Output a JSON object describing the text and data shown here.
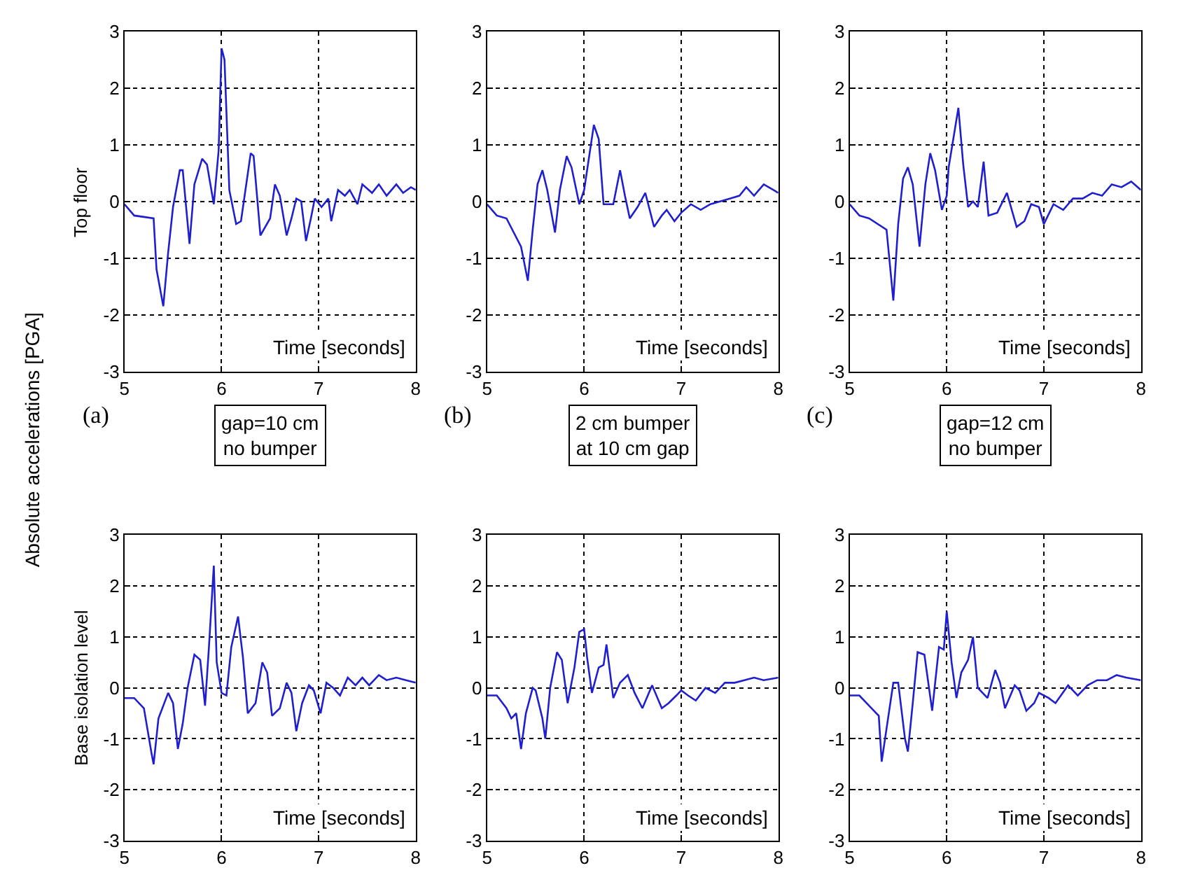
{
  "chart_data": [
    {
      "type": "line",
      "ylabel": "Top floor",
      "xlabel": "Time [seconds]",
      "annotations": [
        "(a)",
        "gap=10 cm\nno bumper",
        "Absolute accelerations [PGA]"
      ],
      "xlim": [
        5,
        8
      ],
      "ylim": [
        -3,
        3
      ],
      "xticks": [
        5,
        6,
        7,
        8
      ],
      "yticks": [
        -3,
        -2,
        -1,
        0,
        1,
        2,
        3
      ],
      "grid": true,
      "line_style": "solid",
      "series": [
        {
          "color": "#1f1fd0",
          "x": [
            5.0,
            5.1,
            5.3,
            5.33,
            5.4,
            5.45,
            5.5,
            5.57,
            5.6,
            5.67,
            5.72,
            5.8,
            5.85,
            5.92,
            5.97,
            6.0,
            6.03,
            6.08,
            6.15,
            6.2,
            6.3,
            6.33,
            6.4,
            6.5,
            6.55,
            6.6,
            6.67,
            6.72,
            6.77,
            6.82,
            6.87,
            6.92,
            6.96,
            7.03,
            7.1,
            7.13,
            7.2,
            7.27,
            7.32,
            7.4,
            7.45,
            7.55,
            7.62,
            7.7,
            7.8,
            7.87,
            7.95,
            8.0
          ],
          "values": [
            -0.05,
            -0.25,
            -0.3,
            -1.2,
            -1.85,
            -0.9,
            -0.1,
            0.55,
            0.55,
            -0.75,
            0.3,
            0.75,
            0.65,
            -0.05,
            0.9,
            2.7,
            2.5,
            0.2,
            -0.4,
            -0.35,
            0.85,
            0.8,
            -0.6,
            -0.3,
            0.3,
            0.1,
            -0.6,
            -0.3,
            0.05,
            0.0,
            -0.7,
            -0.3,
            0.05,
            -0.1,
            0.05,
            -0.35,
            0.2,
            0.1,
            0.2,
            -0.05,
            0.3,
            0.15,
            0.3,
            0.1,
            0.3,
            0.15,
            0.25,
            0.2
          ]
        }
      ]
    },
    {
      "type": "line",
      "xlabel": "Time [seconds]",
      "annotations": [
        "(b)",
        "2 cm bumper\nat 10 cm gap"
      ],
      "xlim": [
        5,
        8
      ],
      "ylim": [
        -3,
        3
      ],
      "xticks": [
        5,
        6,
        7,
        8
      ],
      "yticks": [
        -3,
        -2,
        -1,
        0,
        1,
        2,
        3
      ],
      "grid": true,
      "line_style": "solid",
      "series": [
        {
          "color": "#1f1fd0",
          "x": [
            5.0,
            5.1,
            5.2,
            5.35,
            5.42,
            5.47,
            5.52,
            5.57,
            5.62,
            5.7,
            5.75,
            5.82,
            5.87,
            5.95,
            6.0,
            6.1,
            6.15,
            6.2,
            6.25,
            6.3,
            6.37,
            6.42,
            6.47,
            6.55,
            6.63,
            6.72,
            6.8,
            6.85,
            6.93,
            7.0,
            7.1,
            7.2,
            7.3,
            7.4,
            7.5,
            7.6,
            7.67,
            7.75,
            7.85,
            7.95,
            8.0
          ],
          "values": [
            -0.05,
            -0.25,
            -0.3,
            -0.8,
            -1.4,
            -0.5,
            0.3,
            0.55,
            0.2,
            -0.55,
            0.2,
            0.8,
            0.6,
            -0.05,
            0.2,
            1.35,
            1.1,
            -0.05,
            -0.05,
            -0.05,
            0.55,
            0.1,
            -0.3,
            -0.1,
            0.15,
            -0.45,
            -0.25,
            -0.15,
            -0.35,
            -0.2,
            -0.05,
            -0.15,
            -0.05,
            0.0,
            0.05,
            0.1,
            0.25,
            0.1,
            0.3,
            0.2,
            0.15
          ]
        }
      ]
    },
    {
      "type": "line",
      "xlabel": "Time [seconds]",
      "annotations": [
        "(c)",
        "gap=12 cm\nno bumper"
      ],
      "xlim": [
        5,
        8
      ],
      "ylim": [
        -3,
        3
      ],
      "xticks": [
        5,
        6,
        7,
        8
      ],
      "yticks": [
        -3,
        -2,
        -1,
        0,
        1,
        2,
        3
      ],
      "grid": true,
      "line_style": "solid",
      "series": [
        {
          "color": "#1f1fd0",
          "x": [
            5.0,
            5.1,
            5.2,
            5.38,
            5.45,
            5.5,
            5.55,
            5.6,
            5.65,
            5.72,
            5.78,
            5.83,
            5.88,
            5.95,
            6.0,
            6.02,
            6.12,
            6.17,
            6.22,
            6.27,
            6.32,
            6.38,
            6.43,
            6.52,
            6.62,
            6.72,
            6.8,
            6.87,
            6.95,
            7.0,
            7.1,
            7.2,
            7.3,
            7.4,
            7.5,
            7.6,
            7.7,
            7.8,
            7.9,
            8.0
          ],
          "values": [
            -0.05,
            -0.25,
            -0.3,
            -0.5,
            -1.75,
            -0.4,
            0.4,
            0.6,
            0.3,
            -0.8,
            0.3,
            0.85,
            0.55,
            -0.15,
            0.1,
            0.6,
            1.65,
            0.65,
            -0.1,
            0.0,
            -0.1,
            0.7,
            -0.25,
            -0.2,
            0.15,
            -0.45,
            -0.35,
            -0.05,
            -0.1,
            -0.4,
            -0.05,
            -0.15,
            0.05,
            0.05,
            0.15,
            0.1,
            0.3,
            0.25,
            0.35,
            0.2
          ]
        }
      ]
    },
    {
      "type": "line",
      "ylabel": "Base isolation level",
      "xlabel": "Time [seconds]",
      "xlim": [
        5,
        8
      ],
      "ylim": [
        -3,
        3
      ],
      "xticks": [
        5,
        6,
        7,
        8
      ],
      "yticks": [
        -3,
        -2,
        -1,
        0,
        1,
        2,
        3
      ],
      "grid": true,
      "line_style": "solid",
      "series": [
        {
          "color": "#1f1fd0",
          "x": [
            5.0,
            5.1,
            5.2,
            5.28,
            5.3,
            5.35,
            5.45,
            5.5,
            5.55,
            5.6,
            5.65,
            5.72,
            5.78,
            5.83,
            5.87,
            5.92,
            5.95,
            6.0,
            6.05,
            6.1,
            6.17,
            6.22,
            6.27,
            6.35,
            6.42,
            6.47,
            6.52,
            6.6,
            6.67,
            6.72,
            6.77,
            6.83,
            6.9,
            6.95,
            7.02,
            7.08,
            7.15,
            7.22,
            7.3,
            7.38,
            7.45,
            7.52,
            7.62,
            7.7,
            7.8,
            7.9,
            8.0
          ],
          "values": [
            -0.2,
            -0.2,
            -0.4,
            -1.3,
            -1.5,
            -0.6,
            -0.1,
            -0.3,
            -1.2,
            -0.7,
            0.0,
            0.65,
            0.55,
            -0.35,
            0.8,
            2.4,
            0.5,
            -0.1,
            -0.15,
            0.8,
            1.4,
            0.6,
            -0.5,
            -0.3,
            0.5,
            0.3,
            -0.55,
            -0.4,
            0.1,
            -0.1,
            -0.85,
            -0.3,
            0.05,
            -0.05,
            -0.5,
            0.1,
            0.0,
            -0.15,
            0.2,
            0.05,
            0.2,
            0.05,
            0.25,
            0.15,
            0.2,
            0.15,
            0.1
          ]
        }
      ]
    },
    {
      "type": "line",
      "xlabel": "Time [seconds]",
      "xlim": [
        5,
        8
      ],
      "ylim": [
        -3,
        3
      ],
      "xticks": [
        5,
        6,
        7,
        8
      ],
      "yticks": [
        -3,
        -2,
        -1,
        0,
        1,
        2,
        3
      ],
      "grid": true,
      "line_style": "solid",
      "series": [
        {
          "color": "#1f1fd0",
          "x": [
            5.0,
            5.1,
            5.2,
            5.25,
            5.3,
            5.35,
            5.4,
            5.47,
            5.5,
            5.57,
            5.6,
            5.65,
            5.72,
            5.77,
            5.83,
            5.9,
            5.95,
            6.0,
            6.03,
            6.08,
            6.15,
            6.2,
            6.23,
            6.3,
            6.37,
            6.45,
            6.52,
            6.6,
            6.7,
            6.8,
            6.87,
            6.95,
            7.0,
            7.07,
            7.15,
            7.25,
            7.35,
            7.45,
            7.55,
            7.65,
            7.75,
            7.85,
            8.0
          ],
          "values": [
            -0.15,
            -0.15,
            -0.4,
            -0.6,
            -0.5,
            -1.2,
            -0.5,
            0.0,
            -0.05,
            -0.6,
            -1.0,
            0.0,
            0.7,
            0.55,
            -0.3,
            0.4,
            1.1,
            1.15,
            0.6,
            -0.1,
            0.4,
            0.45,
            0.85,
            -0.2,
            0.1,
            0.25,
            -0.1,
            -0.4,
            0.05,
            -0.4,
            -0.3,
            -0.15,
            -0.05,
            -0.15,
            -0.25,
            0.0,
            -0.1,
            0.1,
            0.1,
            0.15,
            0.2,
            0.15,
            0.2
          ]
        }
      ]
    },
    {
      "type": "line",
      "xlabel": "Time [seconds]",
      "xlim": [
        5,
        8
      ],
      "ylim": [
        -3,
        3
      ],
      "xticks": [
        5,
        6,
        7,
        8
      ],
      "yticks": [
        -3,
        -2,
        -1,
        0,
        1,
        2,
        3
      ],
      "grid": true,
      "line_style": "solid",
      "series": [
        {
          "color": "#1f1fd0",
          "x": [
            5.0,
            5.1,
            5.2,
            5.3,
            5.33,
            5.38,
            5.45,
            5.5,
            5.57,
            5.6,
            5.65,
            5.7,
            5.77,
            5.85,
            5.92,
            5.97,
            6.0,
            6.05,
            6.1,
            6.15,
            6.22,
            6.27,
            6.32,
            6.42,
            6.5,
            6.55,
            6.6,
            6.7,
            6.75,
            6.82,
            6.9,
            6.95,
            7.05,
            7.12,
            7.25,
            7.35,
            7.45,
            7.55,
            7.65,
            7.75,
            7.85,
            8.0
          ],
          "values": [
            -0.15,
            -0.15,
            -0.35,
            -0.55,
            -1.45,
            -0.8,
            0.1,
            0.1,
            -1.0,
            -1.25,
            -0.3,
            0.7,
            0.65,
            -0.45,
            0.8,
            0.75,
            1.5,
            0.5,
            -0.2,
            0.3,
            0.55,
            1.0,
            0.0,
            -0.2,
            0.35,
            0.1,
            -0.4,
            0.05,
            -0.05,
            -0.45,
            -0.3,
            -0.1,
            -0.2,
            -0.3,
            0.05,
            -0.15,
            0.05,
            0.15,
            0.15,
            0.25,
            0.2,
            0.15
          ]
        }
      ]
    }
  ]
}
